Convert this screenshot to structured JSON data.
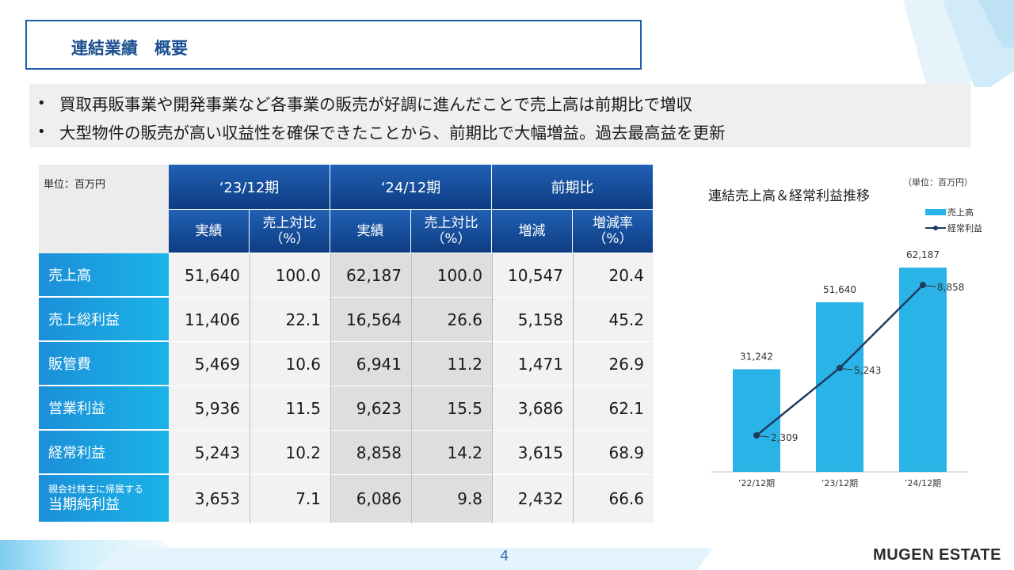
{
  "title": "連結業績　概要",
  "bullets": [
    "買取再販事業や開発事業など各事業の販売が好調に進んだことで売上高は前期比で増収",
    "大型物件の販売が高い収益性を確保できたことから、前期比で大幅増益。過去最高益を更新"
  ],
  "table": {
    "unit": "単位：百万円",
    "periods": [
      "‘23/12期",
      "‘24/12期",
      "前期比"
    ],
    "subheaders": [
      {
        "l1": "実績",
        "l2": ""
      },
      {
        "l1": "売上対比",
        "l2": "（%）"
      },
      {
        "l1": "実績",
        "l2": ""
      },
      {
        "l1": "売上対比",
        "l2": "（%）"
      },
      {
        "l1": "増減",
        "l2": ""
      },
      {
        "l1": "増減率",
        "l2": "（%）"
      }
    ],
    "rows": [
      {
        "label": "売上高",
        "label_small": "",
        "values": [
          "51,640",
          "100.0",
          "62,187",
          "100.0",
          "10,547",
          "20.4"
        ]
      },
      {
        "label": "売上総利益",
        "label_small": "",
        "values": [
          "11,406",
          "22.1",
          "16,564",
          "26.6",
          "5,158",
          "45.2"
        ]
      },
      {
        "label": "販管費",
        "label_small": "",
        "values": [
          "5,469",
          "10.6",
          "6,941",
          "11.2",
          "1,471",
          "26.9"
        ]
      },
      {
        "label": "営業利益",
        "label_small": "",
        "values": [
          "5,936",
          "11.5",
          "9,623",
          "15.5",
          "3,686",
          "62.1"
        ]
      },
      {
        "label": "経常利益",
        "label_small": "",
        "values": [
          "5,243",
          "10.2",
          "8,858",
          "14.2",
          "3,615",
          "68.9"
        ]
      },
      {
        "label": "当期純利益",
        "label_small": "親会社株主に帰属する",
        "values": [
          "3,653",
          "7.1",
          "6,086",
          "9.8",
          "2,432",
          "66.6"
        ]
      }
    ]
  },
  "chart_data": {
    "type": "bar",
    "title": "連結売上高＆経常利益推移",
    "unit_note": "（単位：百万円）",
    "categories": [
      "’22/12期",
      "’23/12期",
      "’24/12期"
    ],
    "series": [
      {
        "name": "売上高",
        "kind": "bar",
        "values": [
          31242,
          51640,
          62187
        ],
        "labels": [
          "31,242",
          "51,640",
          "62,187"
        ],
        "color": "#29b3e6"
      },
      {
        "name": "経常利益",
        "kind": "line",
        "values": [
          2309,
          5243,
          8858
        ],
        "labels": [
          "2,309",
          "5,243",
          "8,858"
        ],
        "color": "#1e3a5f"
      }
    ],
    "legend": "top-right",
    "grid": false
  },
  "page_number": "4",
  "brand": "MUGEN ESTATE",
  "colors": {
    "accent": "#1b4f91",
    "header": "#0e3c82",
    "row_label": "#1bb3e8"
  }
}
